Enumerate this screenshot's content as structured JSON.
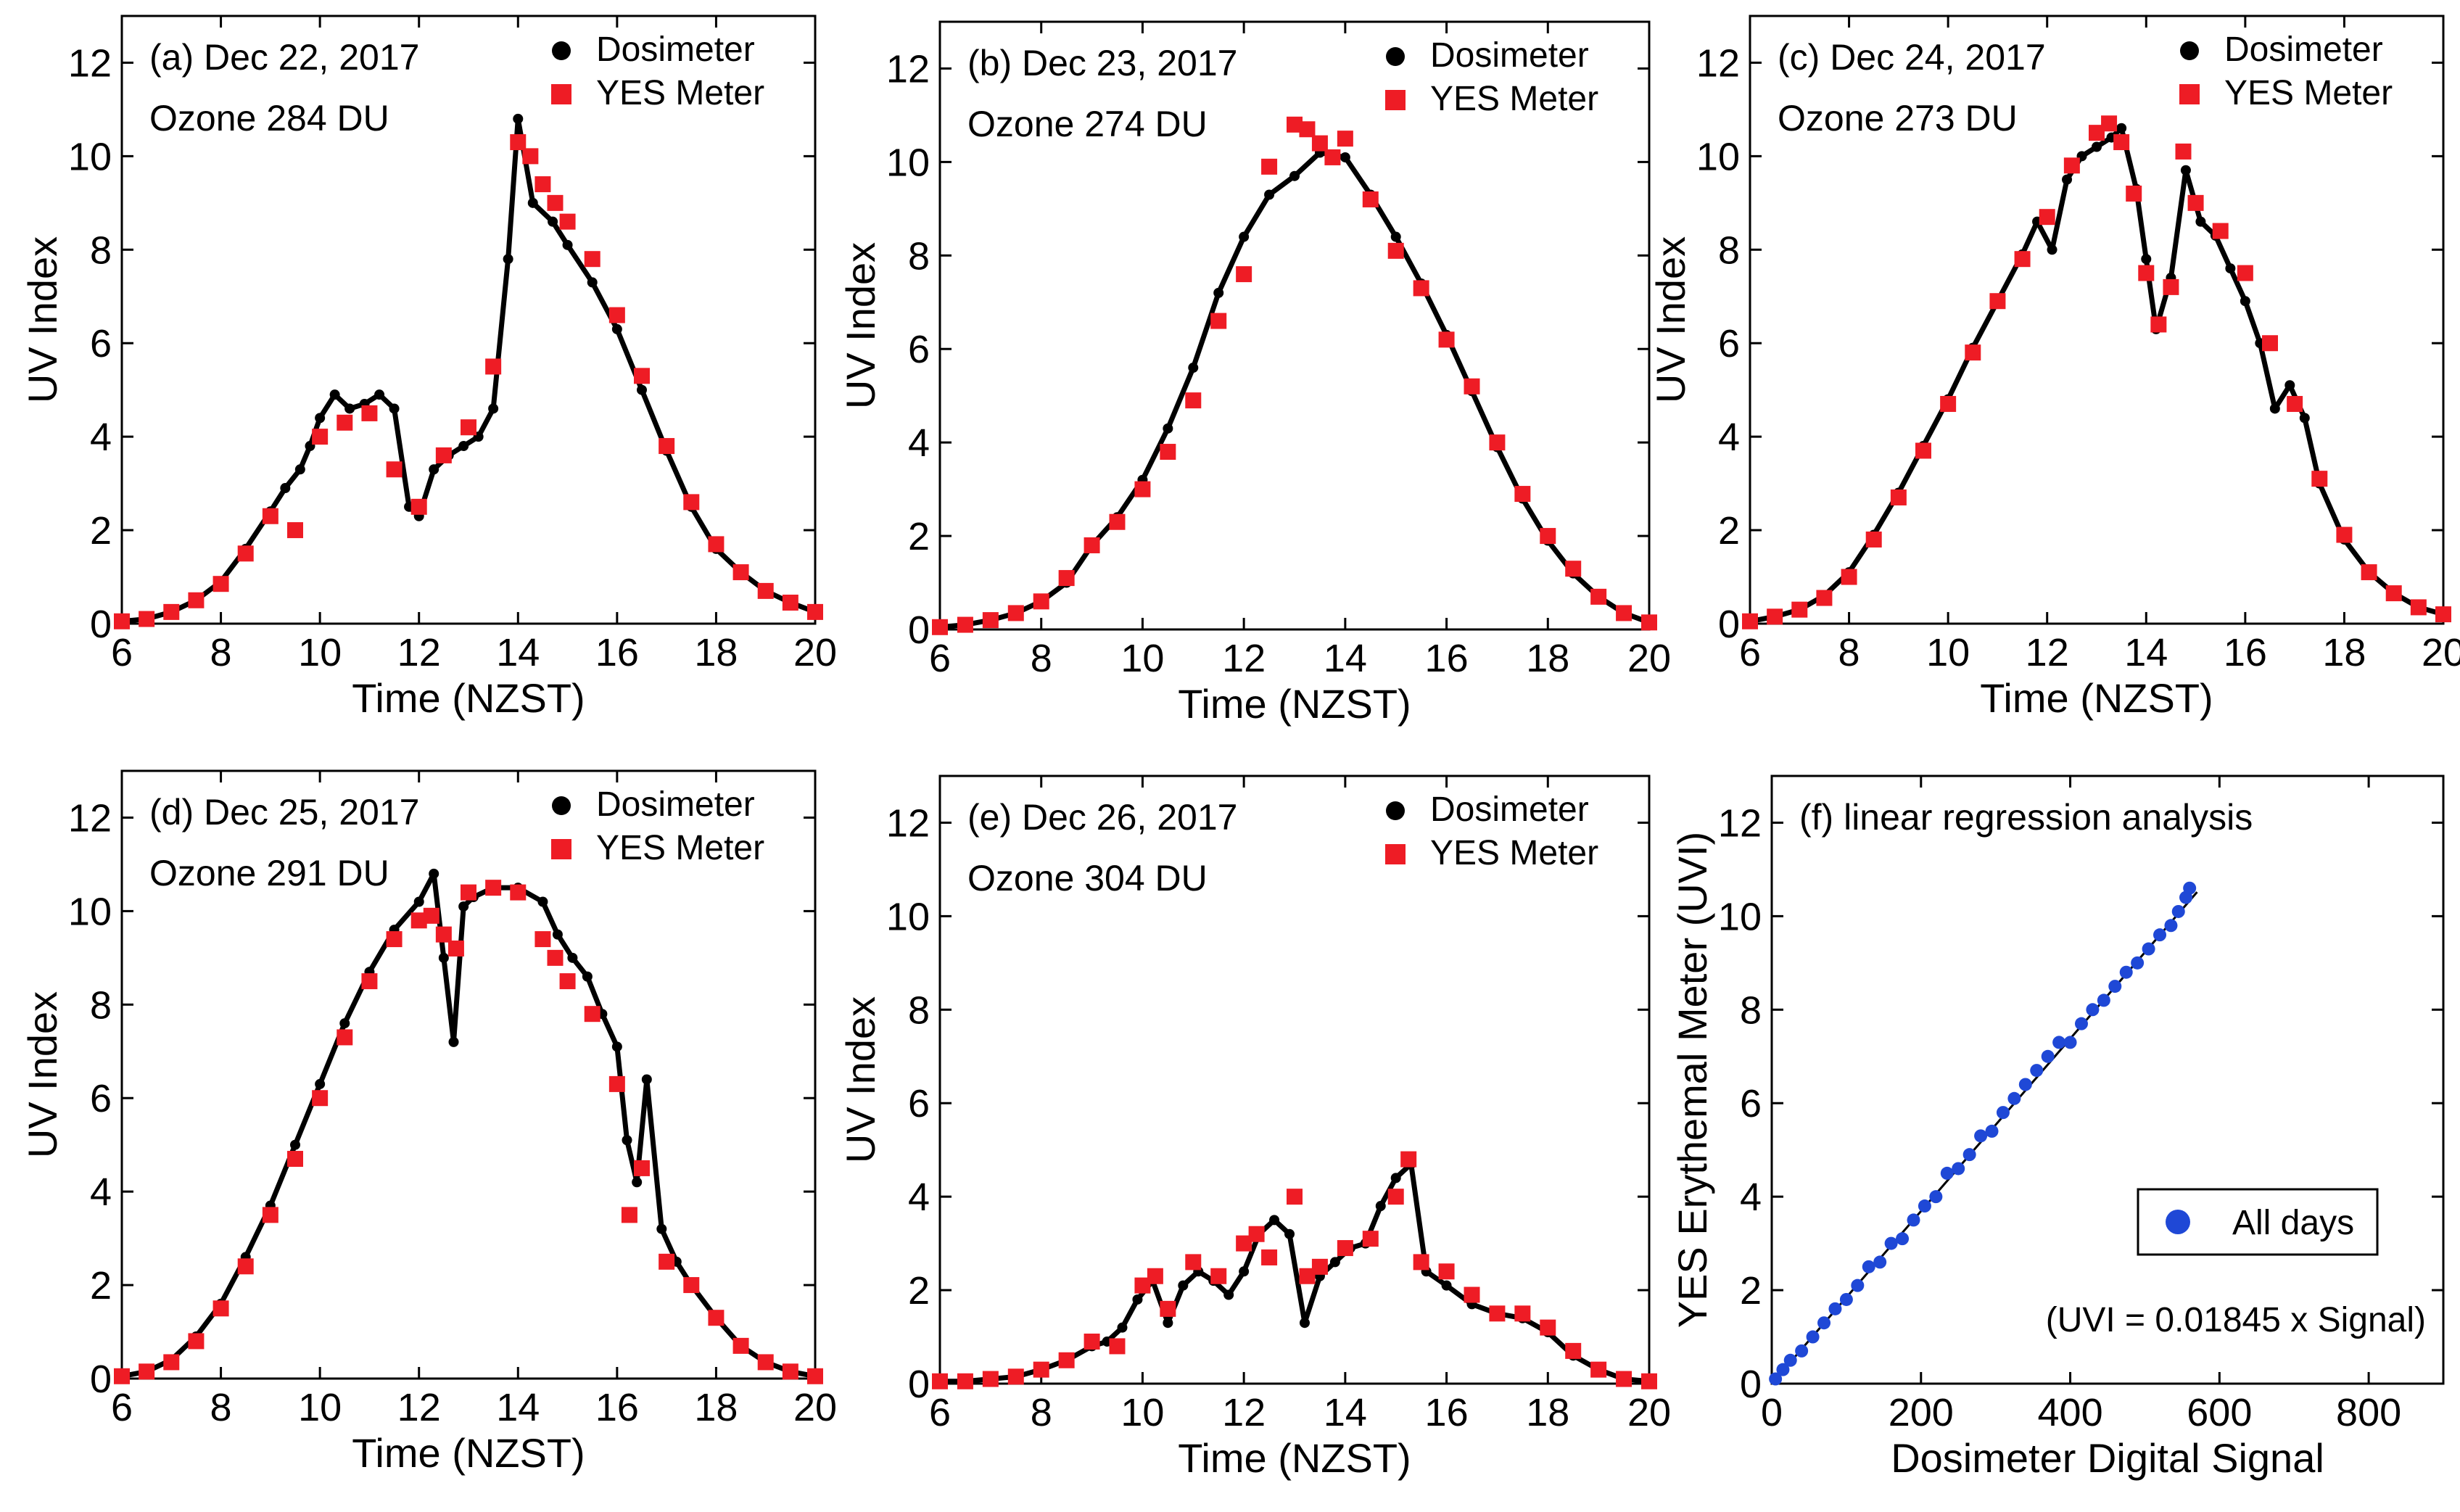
{
  "chart_data": [
    {
      "type": "scatter",
      "panel": "(a) Dec 22, 2017",
      "annotation": "Ozone 284 DU",
      "xlabel": "Time (NZST)",
      "ylabel": "UV Index",
      "xlim": [
        6,
        20
      ],
      "ylim": [
        0,
        13
      ],
      "xticks": [
        "6",
        "8",
        "10",
        "12",
        "14",
        "16",
        "18",
        "20"
      ],
      "yticks": [
        "0",
        "2",
        "4",
        "6",
        "8",
        "10",
        "12"
      ],
      "legend": [
        "Dosimeter",
        "YES Meter"
      ],
      "series": [
        {
          "name": "Dosimeter",
          "color": "#000000",
          "marker": "dot",
          "x": [
            6,
            6.5,
            7,
            7.5,
            8,
            8.5,
            9,
            9.3,
            9.6,
            9.8,
            10,
            10.3,
            10.6,
            10.9,
            11.2,
            11.5,
            11.8,
            12,
            12.3,
            12.6,
            12.9,
            13.2,
            13.5,
            13.8,
            14,
            14.3,
            14.7,
            15,
            15.5,
            16,
            16.5,
            17,
            17.5,
            18,
            18.5,
            19,
            19.5,
            20
          ],
          "y": [
            0.05,
            0.1,
            0.25,
            0.5,
            0.9,
            1.6,
            2.4,
            2.9,
            3.3,
            3.8,
            4.4,
            4.9,
            4.6,
            4.7,
            4.9,
            4.6,
            2.5,
            2.3,
            3.3,
            3.6,
            3.8,
            4.0,
            4.6,
            7.8,
            10.8,
            9.0,
            8.6,
            8.1,
            7.3,
            6.3,
            5.0,
            3.7,
            2.5,
            1.6,
            1.1,
            0.7,
            0.45,
            0.25
          ]
        },
        {
          "name": "YES Meter",
          "color": "#ee1c25",
          "marker": "square",
          "x": [
            6,
            6.5,
            7,
            7.5,
            8,
            8.5,
            9,
            9.5,
            10,
            10.5,
            11,
            11.5,
            12,
            12.5,
            13,
            13.5,
            14,
            14.25,
            14.5,
            14.75,
            15,
            15.5,
            16,
            16.5,
            17,
            17.5,
            18,
            18.5,
            19,
            19.5,
            20
          ],
          "y": [
            0.05,
            0.1,
            0.25,
            0.5,
            0.85,
            1.5,
            2.3,
            2.0,
            4.0,
            4.3,
            4.5,
            3.3,
            2.5,
            3.6,
            4.2,
            5.5,
            10.3,
            10.0,
            9.4,
            9.0,
            8.6,
            7.8,
            6.6,
            5.3,
            3.8,
            2.6,
            1.7,
            1.1,
            0.7,
            0.45,
            0.25
          ]
        }
      ]
    },
    {
      "type": "scatter",
      "panel": "(b) Dec 23, 2017",
      "annotation": "Ozone 274 DU",
      "xlabel": "Time (NZST)",
      "ylabel": "UV Index",
      "xlim": [
        6,
        20
      ],
      "ylim": [
        0,
        13
      ],
      "xticks": [
        "6",
        "8",
        "10",
        "12",
        "14",
        "16",
        "18",
        "20"
      ],
      "yticks": [
        "0",
        "2",
        "4",
        "6",
        "8",
        "10",
        "12"
      ],
      "legend": [
        "Dosimeter",
        "YES Meter"
      ],
      "series": [
        {
          "name": "Dosimeter",
          "color": "#000000",
          "marker": "dot",
          "x": [
            6,
            6.5,
            7,
            7.5,
            8,
            8.5,
            9,
            9.5,
            10,
            10.5,
            11,
            11.5,
            12,
            12.5,
            13,
            13.5,
            14,
            14.5,
            15,
            15.5,
            16,
            16.5,
            17,
            17.5,
            18,
            18.5,
            19,
            19.5,
            20
          ],
          "y": [
            0.05,
            0.1,
            0.2,
            0.35,
            0.6,
            1.0,
            1.8,
            2.4,
            3.2,
            4.3,
            5.6,
            7.2,
            8.4,
            9.3,
            9.7,
            10.2,
            10.1,
            9.3,
            8.4,
            7.4,
            6.3,
            5.1,
            3.9,
            2.8,
            1.9,
            1.2,
            0.7,
            0.35,
            0.15
          ]
        },
        {
          "name": "YES Meter",
          "color": "#ee1c25",
          "marker": "square",
          "x": [
            6,
            6.5,
            7,
            7.5,
            8,
            8.5,
            9,
            9.5,
            10,
            10.5,
            11,
            11.5,
            12,
            12.5,
            13,
            13.25,
            13.5,
            13.75,
            14,
            14.5,
            15,
            15.5,
            16,
            16.5,
            17,
            17.5,
            18,
            18.5,
            19,
            19.5,
            20
          ],
          "y": [
            0.05,
            0.1,
            0.2,
            0.35,
            0.6,
            1.1,
            1.8,
            2.3,
            3.0,
            3.8,
            4.9,
            6.6,
            7.6,
            9.9,
            10.8,
            10.7,
            10.4,
            10.1,
            10.5,
            9.2,
            8.1,
            7.3,
            6.2,
            5.2,
            4.0,
            2.9,
            2.0,
            1.3,
            0.7,
            0.35,
            0.15
          ]
        }
      ]
    },
    {
      "type": "scatter",
      "panel": "(c) Dec 24, 2017",
      "annotation": "Ozone 273 DU",
      "xlabel": "Time (NZST)",
      "ylabel": "UV Index",
      "xlim": [
        6,
        20
      ],
      "ylim": [
        0,
        13
      ],
      "xticks": [
        "6",
        "8",
        "10",
        "12",
        "14",
        "16",
        "18",
        "20"
      ],
      "yticks": [
        "0",
        "2",
        "4",
        "6",
        "8",
        "10",
        "12"
      ],
      "legend": [
        "Dosimeter",
        "YES Meter"
      ],
      "series": [
        {
          "name": "Dosimeter",
          "color": "#000000",
          "marker": "dot",
          "x": [
            6,
            6.5,
            7,
            7.5,
            8,
            8.5,
            9,
            9.5,
            10,
            10.5,
            11,
            11.5,
            11.8,
            12.1,
            12.4,
            12.7,
            13,
            13.3,
            13.5,
            13.8,
            14,
            14.2,
            14.5,
            14.8,
            15.1,
            15.4,
            15.7,
            16,
            16.3,
            16.6,
            16.9,
            17.2,
            17.5,
            18,
            18.5,
            19,
            19.5,
            20
          ],
          "y": [
            0.05,
            0.15,
            0.3,
            0.6,
            1.1,
            1.9,
            2.8,
            3.8,
            4.8,
            5.9,
            6.9,
            7.9,
            8.6,
            8.0,
            9.5,
            10.0,
            10.2,
            10.4,
            10.6,
            9.3,
            7.8,
            6.3,
            7.4,
            9.7,
            8.6,
            8.3,
            7.6,
            6.9,
            6.0,
            4.6,
            5.1,
            4.4,
            3.0,
            1.8,
            1.1,
            0.65,
            0.35,
            0.2
          ]
        },
        {
          "name": "YES Meter",
          "color": "#ee1c25",
          "marker": "square",
          "x": [
            6,
            6.5,
            7,
            7.5,
            8,
            8.5,
            9,
            9.5,
            10,
            10.5,
            11,
            11.5,
            12,
            12.5,
            13,
            13.25,
            13.5,
            13.75,
            14,
            14.25,
            14.5,
            14.75,
            15,
            15.5,
            16,
            16.5,
            17,
            17.5,
            18,
            18.5,
            19,
            19.5,
            20
          ],
          "y": [
            0.05,
            0.15,
            0.3,
            0.55,
            1.0,
            1.8,
            2.7,
            3.7,
            4.7,
            5.8,
            6.9,
            7.8,
            8.7,
            9.8,
            10.5,
            10.7,
            10.3,
            9.2,
            7.5,
            6.4,
            7.2,
            10.1,
            9.0,
            8.4,
            7.5,
            6.0,
            4.7,
            3.1,
            1.9,
            1.1,
            0.65,
            0.35,
            0.2
          ]
        }
      ]
    },
    {
      "type": "scatter",
      "panel": "(d) Dec 25, 2017",
      "annotation": "Ozone 291 DU",
      "xlabel": "Time (NZST)",
      "ylabel": "UV Index",
      "xlim": [
        6,
        20
      ],
      "ylim": [
        0,
        13
      ],
      "xticks": [
        "6",
        "8",
        "10",
        "12",
        "14",
        "16",
        "18",
        "20"
      ],
      "yticks": [
        "0",
        "2",
        "4",
        "6",
        "8",
        "10",
        "12"
      ],
      "legend": [
        "Dosimeter",
        "YES Meter"
      ],
      "series": [
        {
          "name": "Dosimeter",
          "color": "#000000",
          "marker": "dot",
          "x": [
            6,
            6.5,
            7,
            7.5,
            8,
            8.5,
            9,
            9.5,
            10,
            10.5,
            11,
            11.5,
            12,
            12.3,
            12.5,
            12.7,
            12.9,
            13.1,
            13.5,
            14,
            14.5,
            14.8,
            15.1,
            15.4,
            15.7,
            16,
            16.2,
            16.4,
            16.6,
            16.9,
            17.2,
            17.5,
            18,
            18.5,
            19,
            19.5,
            20
          ],
          "y": [
            0.05,
            0.15,
            0.4,
            0.9,
            1.6,
            2.6,
            3.7,
            5.0,
            6.3,
            7.6,
            8.7,
            9.6,
            10.2,
            10.8,
            9.0,
            7.2,
            10.1,
            10.3,
            10.5,
            10.5,
            10.2,
            9.5,
            9.0,
            8.6,
            7.8,
            7.1,
            5.1,
            4.2,
            6.4,
            3.2,
            2.5,
            2.0,
            1.3,
            0.7,
            0.35,
            0.15,
            0.05
          ]
        },
        {
          "name": "YES Meter",
          "color": "#ee1c25",
          "marker": "square",
          "x": [
            6,
            6.5,
            7,
            7.5,
            8,
            8.5,
            9,
            9.5,
            10,
            10.5,
            11,
            11.5,
            12,
            12.25,
            12.5,
            12.75,
            13,
            13.5,
            14,
            14.5,
            14.75,
            15,
            15.5,
            16,
            16.25,
            16.5,
            17,
            17.5,
            18,
            18.5,
            19,
            19.5,
            20
          ],
          "y": [
            0.05,
            0.15,
            0.35,
            0.8,
            1.5,
            2.4,
            3.5,
            4.7,
            6.0,
            7.3,
            8.5,
            9.4,
            9.8,
            9.9,
            9.5,
            9.2,
            10.4,
            10.5,
            10.4,
            9.4,
            9.0,
            8.5,
            7.8,
            6.3,
            3.5,
            4.5,
            2.5,
            2.0,
            1.3,
            0.7,
            0.35,
            0.15,
            0.05
          ]
        }
      ]
    },
    {
      "type": "scatter",
      "panel": "(e) Dec 26, 2017",
      "annotation": "Ozone 304 DU",
      "xlabel": "Time (NZST)",
      "ylabel": "UV Index",
      "xlim": [
        6,
        20
      ],
      "ylim": [
        0,
        13
      ],
      "xticks": [
        "6",
        "8",
        "10",
        "12",
        "14",
        "16",
        "18",
        "20"
      ],
      "yticks": [
        "0",
        "2",
        "4",
        "6",
        "8",
        "10",
        "12"
      ],
      "legend": [
        "Dosimeter",
        "YES Meter"
      ],
      "series": [
        {
          "name": "Dosimeter",
          "color": "#000000",
          "marker": "dot",
          "x": [
            6,
            6.5,
            7,
            7.5,
            8,
            8.5,
            9,
            9.3,
            9.6,
            9.9,
            10.2,
            10.5,
            10.8,
            11.1,
            11.4,
            11.7,
            12,
            12.3,
            12.6,
            12.9,
            13.2,
            13.5,
            13.8,
            14.1,
            14.4,
            14.7,
            15,
            15.3,
            15.6,
            16,
            16.5,
            17,
            17.5,
            18,
            18.5,
            19,
            19.5,
            20
          ],
          "y": [
            0.05,
            0.05,
            0.1,
            0.15,
            0.3,
            0.5,
            0.8,
            0.9,
            1.2,
            1.8,
            2.2,
            1.3,
            2.1,
            2.4,
            2.2,
            1.9,
            2.4,
            3.2,
            3.5,
            3.2,
            1.3,
            2.3,
            2.6,
            2.9,
            3.0,
            3.8,
            4.4,
            4.7,
            2.4,
            2.1,
            1.7,
            1.5,
            1.4,
            1.1,
            0.6,
            0.3,
            0.1,
            0.05
          ]
        },
        {
          "name": "YES Meter",
          "color": "#ee1c25",
          "marker": "square",
          "x": [
            6,
            6.5,
            7,
            7.5,
            8,
            8.5,
            9,
            9.5,
            10,
            10.25,
            10.5,
            11,
            11.5,
            12,
            12.25,
            12.5,
            13,
            13.25,
            13.5,
            14,
            14.5,
            15,
            15.25,
            15.5,
            16,
            16.5,
            17,
            17.5,
            18,
            18.5,
            19,
            19.5,
            20
          ],
          "y": [
            0.05,
            0.05,
            0.1,
            0.15,
            0.3,
            0.5,
            0.9,
            0.8,
            2.1,
            2.3,
            1.6,
            2.6,
            2.3,
            3.0,
            3.2,
            2.7,
            4.0,
            2.3,
            2.5,
            2.9,
            3.1,
            4.0,
            4.8,
            2.6,
            2.4,
            1.9,
            1.5,
            1.5,
            1.2,
            0.7,
            0.3,
            0.1,
            0.05
          ]
        }
      ]
    },
    {
      "type": "scatter",
      "panel": "(f) linear regression analysis",
      "annotation": "(UVI = 0.01845 x Signal)",
      "xlabel": "Dosimeter Digital Signal",
      "ylabel": "YES Erythemal Meter (UVI)",
      "xlim": [
        0,
        900
      ],
      "ylim": [
        0,
        13
      ],
      "xticks": [
        "0",
        "200",
        "400",
        "600",
        "800"
      ],
      "yticks": [
        "0",
        "2",
        "4",
        "6",
        "8",
        "10",
        "12"
      ],
      "legend": [
        "All days"
      ],
      "fit": {
        "slope": 0.01845,
        "x_range": [
          0,
          570
        ]
      },
      "series": [
        {
          "name": "All days",
          "color": "#1f48d6",
          "marker": "circle",
          "x": [
            5,
            15,
            25,
            40,
            55,
            70,
            85,
            100,
            115,
            130,
            145,
            160,
            175,
            190,
            205,
            220,
            235,
            250,
            265,
            280,
            295,
            310,
            325,
            340,
            355,
            370,
            385,
            400,
            415,
            430,
            445,
            460,
            475,
            490,
            505,
            520,
            535,
            545,
            555,
            560
          ],
          "y": [
            0.1,
            0.3,
            0.5,
            0.7,
            1.0,
            1.3,
            1.6,
            1.8,
            2.1,
            2.5,
            2.6,
            3.0,
            3.1,
            3.5,
            3.8,
            4.0,
            4.5,
            4.6,
            4.9,
            5.3,
            5.4,
            5.8,
            6.1,
            6.4,
            6.7,
            7.0,
            7.3,
            7.3,
            7.7,
            8.0,
            8.2,
            8.5,
            8.8,
            9.0,
            9.3,
            9.6,
            9.8,
            10.1,
            10.4,
            10.6
          ]
        }
      ]
    }
  ]
}
